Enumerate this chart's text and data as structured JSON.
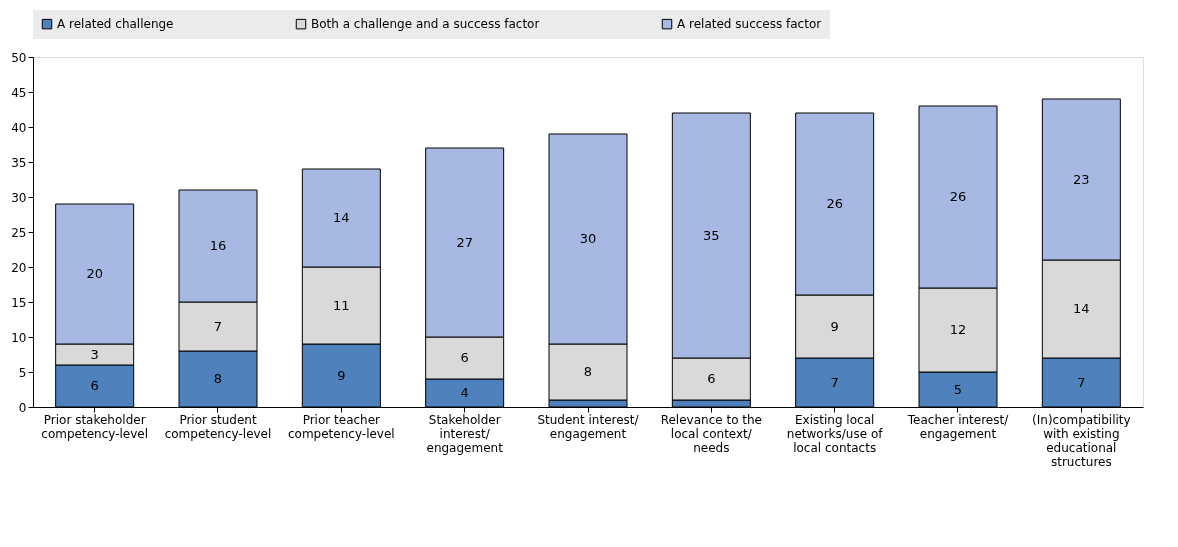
{
  "chart_data": {
    "type": "bar",
    "stacked": true,
    "legend": "top",
    "grid": false,
    "categories": [
      "Prior stakeholder competency-level",
      "Prior student competency-level",
      "Prior teacher competency-level",
      "Stakeholder interest/ engagement",
      "Student interest/ engagement",
      "Relevance to the local context/ needs",
      "Existing local networks/use of local contacts",
      "Teacher interest/ engagement",
      "(In)compatibility with existing educational structures"
    ],
    "ylim": [
      0,
      50
    ],
    "yticks": [
      0,
      5,
      10,
      15,
      20,
      25,
      30,
      35,
      40,
      45,
      50
    ],
    "series": [
      {
        "name": "A related challenge",
        "color": "#4f81bd",
        "values": [
          6,
          8,
          9,
          4,
          1,
          1,
          7,
          5,
          7
        ],
        "value_labels": [
          "6",
          "8",
          "9",
          "4",
          null,
          null,
          "7",
          "5",
          "7"
        ]
      },
      {
        "name": "Both a challenge and a success factor",
        "color": "#d9d9d9",
        "values": [
          3,
          7,
          11,
          6,
          8,
          6,
          9,
          12,
          14
        ],
        "value_labels": [
          "3",
          "7",
          "11",
          "6",
          "8",
          "6",
          "9",
          "12",
          "14"
        ]
      },
      {
        "name": "A related success factor",
        "color": "#a7b9e3",
        "values": [
          20,
          16,
          14,
          27,
          30,
          35,
          26,
          26,
          23
        ],
        "value_labels": [
          "20",
          "16",
          "14",
          "27",
          "30",
          "35",
          "26",
          "26",
          "23"
        ]
      }
    ]
  }
}
